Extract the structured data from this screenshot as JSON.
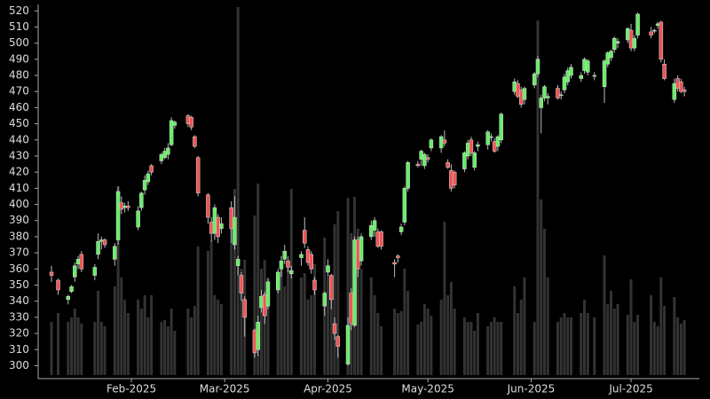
{
  "chart_data": {
    "type": "candlestick",
    "x": [
      8,
      10,
      13,
      14,
      15,
      16,
      17,
      21,
      22,
      23,
      24,
      27,
      28,
      29,
      30,
      31,
      34,
      35,
      36,
      37,
      38,
      41,
      42,
      43,
      44,
      45,
      49,
      50,
      51,
      52,
      55,
      56,
      57,
      58,
      59,
      62,
      63,
      64,
      65,
      66,
      69,
      70,
      71,
      72,
      73,
      76,
      77,
      78,
      79,
      80,
      83,
      84,
      85,
      86,
      87,
      90,
      91,
      92,
      93,
      94,
      97,
      98,
      99,
      100,
      101,
      104,
      105,
      106,
      107,
      111,
      112,
      113,
      114,
      115,
      118,
      119,
      120,
      121,
      122,
      125,
      126,
      127,
      128,
      129,
      132,
      133,
      134,
      135,
      136,
      139,
      140,
      141,
      142,
      143,
      147,
      148,
      149,
      150,
      153,
      154,
      155,
      156,
      157,
      160,
      161,
      162,
      163,
      164,
      167,
      168,
      169,
      171,
      174,
      175,
      176,
      177,
      178,
      181,
      182,
      183,
      184,
      188,
      189,
      190,
      191,
      192,
      195,
      196,
      197,
      198
    ],
    "open": [
      358,
      353,
      341,
      346,
      355,
      363,
      369,
      356,
      369,
      377,
      378,
      366,
      378,
      401,
      398,
      399,
      386,
      398,
      409,
      414,
      424,
      427,
      429,
      431,
      437,
      449,
      455,
      454,
      442,
      429,
      406,
      389,
      382,
      392,
      385,
      398,
      375,
      362,
      356,
      341,
      322,
      310,
      336,
      344,
      337,
      347,
      360,
      366,
      365,
      357,
      367,
      384,
      372,
      369,
      353,
      337,
      358,
      356,
      326,
      318,
      301,
      345,
      325,
      378,
      365,
      380,
      384,
      383,
      383,
      364,
      368,
      383,
      389,
      410,
      425,
      428,
      424,
      429,
      435,
      435,
      440,
      426,
      421,
      420,
      422,
      430,
      440,
      423,
      436,
      437,
      442,
      439,
      436,
      440,
      470,
      475,
      471,
      465,
      474,
      481,
      460,
      466,
      466,
      472,
      468,
      471,
      476,
      480,
      478,
      483,
      482,
      480,
      473,
      487,
      491,
      496,
      500,
      502,
      508,
      497,
      505,
      507,
      508,
      511,
      513,
      487,
      465,
      478,
      476,
      471
    ],
    "high": [
      362,
      354,
      344,
      350,
      364,
      368,
      371,
      363,
      382,
      380,
      379,
      376,
      411,
      405,
      401,
      402,
      399,
      408,
      418,
      421,
      425,
      432,
      435,
      438,
      454,
      452,
      456,
      455,
      443,
      430,
      407,
      392,
      400,
      394,
      392,
      402,
      405,
      368,
      358,
      343,
      323,
      331,
      347,
      346,
      354,
      360,
      368,
      375,
      368,
      362,
      371,
      392,
      374,
      371,
      355,
      346,
      366,
      357,
      330,
      319,
      330,
      348,
      380,
      380,
      382,
      390,
      392,
      385,
      384,
      366,
      369,
      388,
      411,
      427,
      427,
      434,
      432,
      431,
      441,
      443,
      446,
      428,
      425,
      421,
      433,
      440,
      442,
      433,
      439,
      446,
      444,
      441,
      443,
      457,
      478,
      477,
      473,
      473,
      482,
      492,
      468,
      474,
      469,
      474,
      470,
      481,
      485,
      487,
      482,
      491,
      490,
      482,
      490,
      495,
      496,
      504,
      503,
      510,
      512,
      505,
      519,
      510,
      509,
      513,
      514,
      490,
      478,
      480,
      478,
      473
    ],
    "low": [
      352,
      344,
      338,
      345,
      352,
      360,
      358,
      353,
      366,
      372,
      373,
      362,
      375,
      394,
      395,
      396,
      384,
      396,
      406,
      412,
      418,
      425,
      428,
      428,
      436,
      447,
      448,
      446,
      435,
      405,
      388,
      377,
      378,
      376,
      382,
      376,
      372,
      356,
      340,
      318,
      305,
      306,
      333,
      326,
      335,
      345,
      355,
      363,
      358,
      354,
      362,
      373,
      362,
      357,
      344,
      331,
      355,
      335,
      316,
      305,
      300,
      322,
      324,
      355,
      362,
      378,
      380,
      373,
      372,
      355,
      364,
      381,
      387,
      408,
      423,
      424,
      422,
      426,
      433,
      432,
      436,
      422,
      408,
      410,
      420,
      428,
      430,
      421,
      433,
      434,
      439,
      432,
      433,
      438,
      468,
      466,
      460,
      462,
      472,
      479,
      444,
      464,
      462,
      465,
      465,
      469,
      474,
      478,
      476,
      481,
      480,
      477,
      463,
      485,
      489,
      494,
      497,
      500,
      495,
      495,
      503,
      503,
      506,
      509,
      488,
      477,
      463,
      470,
      469,
      467
    ],
    "close": [
      356,
      347,
      343,
      349,
      362,
      366,
      360,
      361,
      377,
      378,
      375,
      374,
      408,
      397,
      399,
      398,
      396,
      407,
      415,
      419,
      420,
      431,
      433,
      435,
      452,
      451,
      450,
      448,
      436,
      407,
      392,
      382,
      398,
      380,
      388,
      385,
      392,
      366,
      345,
      330,
      308,
      327,
      343,
      331,
      352,
      358,
      365,
      371,
      361,
      359,
      369,
      376,
      364,
      360,
      347,
      345,
      362,
      341,
      320,
      312,
      325,
      326,
      378,
      360,
      380,
      387,
      390,
      374,
      374,
      363,
      367,
      386,
      410,
      426,
      424,
      433,
      431,
      428,
      440,
      442,
      438,
      423,
      410,
      412,
      432,
      438,
      432,
      432,
      437,
      445,
      442,
      433,
      442,
      456,
      476,
      467,
      462,
      472,
      481,
      490,
      466,
      473,
      467,
      466,
      468,
      479,
      483,
      485,
      480,
      490,
      489,
      480,
      489,
      494,
      495,
      503,
      501,
      509,
      497,
      503,
      518,
      505,
      508,
      512,
      490,
      478,
      475,
      472,
      470,
      470
    ],
    "volume": [
      60,
      70,
      60,
      65,
      75,
      65,
      58,
      60,
      95,
      60,
      55,
      100,
      213,
      110,
      85,
      70,
      85,
      75,
      90,
      65,
      90,
      60,
      62,
      55,
      75,
      50,
      75,
      65,
      78,
      145,
      140,
      152,
      90,
      85,
      80,
      178,
      210,
      415,
      120,
      130,
      180,
      216,
      120,
      130,
      110,
      115,
      120,
      100,
      120,
      210,
      110,
      115,
      85,
      90,
      125,
      155,
      110,
      110,
      170,
      185,
      200,
      160,
      201,
      165,
      120,
      110,
      90,
      70,
      55,
      75,
      70,
      72,
      120,
      95,
      57,
      60,
      80,
      75,
      67,
      85,
      173,
      90,
      105,
      75,
      65,
      60,
      60,
      50,
      70,
      55,
      60,
      65,
      60,
      60,
      100,
      70,
      85,
      110,
      60,
      400,
      198,
      165,
      110,
      60,
      65,
      70,
      65,
      65,
      70,
      85,
      70,
      65,
      135,
      80,
      95,
      75,
      80,
      68,
      108,
      60,
      68,
      90,
      60,
      55,
      110,
      78,
      88,
      65,
      58,
      62
    ],
    "xlim": [
      4,
      202.5
    ],
    "xticks": [
      {
        "value": 32,
        "label": "Feb-2025"
      },
      {
        "value": 60,
        "label": "Mar-2025"
      },
      {
        "value": 91,
        "label": "Apr-2025"
      },
      {
        "value": 121,
        "label": "May-2025"
      },
      {
        "value": 152,
        "label": "Jun-2025"
      },
      {
        "value": 182,
        "label": "Jul-2025"
      }
    ],
    "ylim": [
      292,
      524
    ],
    "yticks": [
      300,
      310,
      320,
      330,
      340,
      350,
      360,
      370,
      380,
      390,
      400,
      410,
      420,
      430,
      440,
      450,
      460,
      470,
      480,
      490,
      500,
      510,
      520
    ],
    "up_color": "#66ee66",
    "down_color": "#ee5555",
    "volume_color": "#333333"
  }
}
